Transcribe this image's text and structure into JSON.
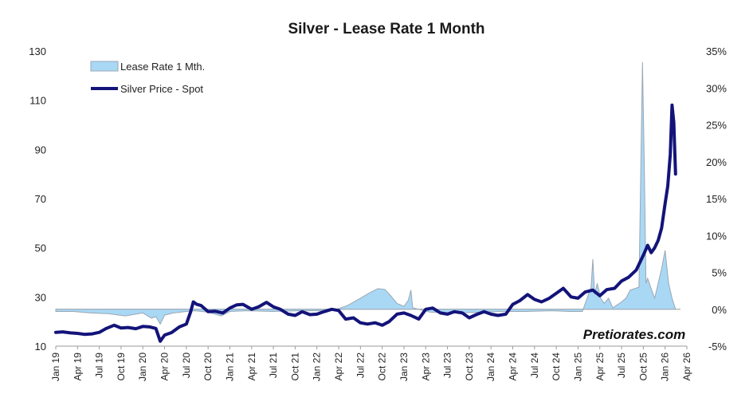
{
  "chart_data": {
    "type": "area+line",
    "title": "Silver - Lease Rate 1 Month",
    "watermark": "Pretiorates.com",
    "legend": [
      {
        "label": "Lease Rate 1 Mth.",
        "kind": "area",
        "color": "#a9d8f5"
      },
      {
        "label": "Silver Price - Spot",
        "kind": "line",
        "color": "#13137a"
      }
    ],
    "colors": {
      "area_fill": "#a9d8f5",
      "area_edge": "#9aa7b3",
      "line": "#13137a",
      "axis": "#9a9a9a"
    },
    "y_left": {
      "min": 10,
      "max": 130,
      "ticks": [
        10,
        30,
        50,
        70,
        90,
        110,
        130
      ],
      "tick_labels": [
        "10",
        "30",
        "50",
        "70",
        "90",
        "110",
        "130"
      ]
    },
    "y_right": {
      "min": -5,
      "max": 35,
      "ticks": [
        -5,
        0,
        5,
        10,
        15,
        20,
        25,
        30,
        35
      ],
      "tick_labels": [
        "-5%",
        "0%",
        "5%",
        "10%",
        "15%",
        "20%",
        "25%",
        "30%",
        "35%"
      ]
    },
    "x_axis": {
      "min": 2019.0,
      "max": 2026.25,
      "tick_labels": [
        "Jan 19",
        "Apr 19",
        "Jul 19",
        "Oct 19",
        "Jan 20",
        "Apr 20",
        "Jul 20",
        "Oct 20",
        "Jan 21",
        "Apr 21",
        "Jul 21",
        "Oct 21",
        "Jan 22",
        "Apr 22",
        "Jul 22",
        "Oct 22",
        "Jan 23",
        "Apr 23",
        "Jul 23",
        "Oct 23",
        "Jan 24",
        "Apr 24",
        "Jul 24",
        "Oct 24",
        "Jan 25",
        "Apr 25",
        "Jul 25",
        "Oct 25",
        "Jan 26",
        "Apr 26"
      ]
    },
    "silver_price": {
      "name": "Silver Price - Spot",
      "points": [
        [
          2019.0,
          15.6
        ],
        [
          2019.08,
          15.8
        ],
        [
          2019.17,
          15.4
        ],
        [
          2019.25,
          15.2
        ],
        [
          2019.33,
          14.8
        ],
        [
          2019.42,
          15.0
        ],
        [
          2019.5,
          15.6
        ],
        [
          2019.58,
          17.2
        ],
        [
          2019.67,
          18.5
        ],
        [
          2019.75,
          17.4
        ],
        [
          2019.83,
          17.6
        ],
        [
          2019.92,
          17.1
        ],
        [
          2020.0,
          18.0
        ],
        [
          2020.08,
          17.8
        ],
        [
          2020.15,
          17.2
        ],
        [
          2020.2,
          12.0
        ],
        [
          2020.25,
          14.5
        ],
        [
          2020.33,
          15.5
        ],
        [
          2020.42,
          17.8
        ],
        [
          2020.5,
          19.0
        ],
        [
          2020.55,
          24.0
        ],
        [
          2020.58,
          28.0
        ],
        [
          2020.62,
          27.0
        ],
        [
          2020.67,
          26.5
        ],
        [
          2020.75,
          24.0
        ],
        [
          2020.83,
          24.2
        ],
        [
          2020.92,
          23.5
        ],
        [
          2021.0,
          25.5
        ],
        [
          2021.08,
          26.8
        ],
        [
          2021.15,
          27.0
        ],
        [
          2021.25,
          25.0
        ],
        [
          2021.33,
          26.0
        ],
        [
          2021.42,
          27.8
        ],
        [
          2021.5,
          26.0
        ],
        [
          2021.58,
          25.0
        ],
        [
          2021.67,
          23.0
        ],
        [
          2021.75,
          22.5
        ],
        [
          2021.83,
          24.0
        ],
        [
          2021.92,
          22.8
        ],
        [
          2022.0,
          23.0
        ],
        [
          2022.08,
          24.0
        ],
        [
          2022.17,
          25.0
        ],
        [
          2022.25,
          24.5
        ],
        [
          2022.33,
          21.0
        ],
        [
          2022.42,
          21.5
        ],
        [
          2022.5,
          19.5
        ],
        [
          2022.58,
          19.0
        ],
        [
          2022.67,
          19.5
        ],
        [
          2022.75,
          18.5
        ],
        [
          2022.83,
          20.0
        ],
        [
          2022.92,
          23.0
        ],
        [
          2023.0,
          23.5
        ],
        [
          2023.08,
          22.5
        ],
        [
          2023.17,
          21.0
        ],
        [
          2023.25,
          25.0
        ],
        [
          2023.33,
          25.5
        ],
        [
          2023.42,
          23.5
        ],
        [
          2023.5,
          23.0
        ],
        [
          2023.58,
          24.0
        ],
        [
          2023.67,
          23.5
        ],
        [
          2023.75,
          21.5
        ],
        [
          2023.83,
          22.8
        ],
        [
          2023.92,
          24.0
        ],
        [
          2024.0,
          23.0
        ],
        [
          2024.08,
          22.5
        ],
        [
          2024.17,
          23.0
        ],
        [
          2024.25,
          27.0
        ],
        [
          2024.33,
          28.5
        ],
        [
          2024.42,
          31.0
        ],
        [
          2024.5,
          29.0
        ],
        [
          2024.58,
          28.0
        ],
        [
          2024.67,
          29.5
        ],
        [
          2024.75,
          31.5
        ],
        [
          2024.83,
          33.5
        ],
        [
          2024.92,
          30.0
        ],
        [
          2025.0,
          29.5
        ],
        [
          2025.08,
          32.0
        ],
        [
          2025.17,
          32.8
        ],
        [
          2025.25,
          30.5
        ],
        [
          2025.33,
          33.0
        ],
        [
          2025.42,
          33.5
        ],
        [
          2025.5,
          36.5
        ],
        [
          2025.58,
          38.0
        ],
        [
          2025.67,
          41.0
        ],
        [
          2025.75,
          47.0
        ],
        [
          2025.8,
          51.0
        ],
        [
          2025.84,
          48.0
        ],
        [
          2025.88,
          50.0
        ],
        [
          2025.92,
          53.0
        ],
        [
          2025.96,
          58.0
        ],
        [
          2026.0,
          68.0
        ],
        [
          2026.03,
          75.0
        ],
        [
          2026.06,
          88.0
        ],
        [
          2026.08,
          108.0
        ],
        [
          2026.1,
          101.0
        ],
        [
          2026.12,
          80.0
        ]
      ]
    },
    "lease_rate": {
      "name": "Lease Rate 1 Mth.",
      "points": [
        [
          2019.0,
          -0.3
        ],
        [
          2019.2,
          -0.3
        ],
        [
          2019.4,
          -0.5
        ],
        [
          2019.6,
          -0.6
        ],
        [
          2019.8,
          -0.9
        ],
        [
          2019.95,
          -0.6
        ],
        [
          2020.0,
          -0.5
        ],
        [
          2020.1,
          -1.2
        ],
        [
          2020.15,
          -1.0
        ],
        [
          2020.2,
          -2.0
        ],
        [
          2020.25,
          -0.8
        ],
        [
          2020.35,
          -0.5
        ],
        [
          2020.5,
          -0.3
        ],
        [
          2020.6,
          -0.2
        ],
        [
          2020.75,
          -0.4
        ],
        [
          2020.9,
          -0.9
        ],
        [
          2021.0,
          -0.3
        ],
        [
          2021.2,
          -0.2
        ],
        [
          2021.5,
          -0.3
        ],
        [
          2021.8,
          -0.2
        ],
        [
          2022.0,
          -0.2
        ],
        [
          2022.2,
          -0.1
        ],
        [
          2022.35,
          0.5
        ],
        [
          2022.5,
          1.5
        ],
        [
          2022.6,
          2.2
        ],
        [
          2022.7,
          2.8
        ],
        [
          2022.78,
          2.7
        ],
        [
          2022.85,
          1.8
        ],
        [
          2022.92,
          0.8
        ],
        [
          2023.0,
          0.4
        ],
        [
          2023.05,
          1.2
        ],
        [
          2023.08,
          2.6
        ],
        [
          2023.1,
          0.2
        ],
        [
          2023.3,
          -0.4
        ],
        [
          2023.6,
          -0.5
        ],
        [
          2023.9,
          -0.4
        ],
        [
          2024.1,
          -0.3
        ],
        [
          2024.4,
          -0.3
        ],
        [
          2024.7,
          -0.2
        ],
        [
          2024.9,
          -0.3
        ],
        [
          2025.05,
          -0.3
        ],
        [
          2025.15,
          3.0
        ],
        [
          2025.17,
          6.8
        ],
        [
          2025.19,
          2.0
        ],
        [
          2025.22,
          3.5
        ],
        [
          2025.26,
          1.5
        ],
        [
          2025.3,
          0.8
        ],
        [
          2025.35,
          1.5
        ],
        [
          2025.4,
          0.2
        ],
        [
          2025.45,
          0.6
        ],
        [
          2025.5,
          1.0
        ],
        [
          2025.55,
          1.5
        ],
        [
          2025.6,
          2.6
        ],
        [
          2025.65,
          2.8
        ],
        [
          2025.7,
          3.0
        ],
        [
          2025.74,
          33.5
        ],
        [
          2025.76,
          20.0
        ],
        [
          2025.78,
          3.5
        ],
        [
          2025.8,
          4.2
        ],
        [
          2025.84,
          2.8
        ],
        [
          2025.88,
          1.5
        ],
        [
          2025.92,
          3.5
        ],
        [
          2025.96,
          5.5
        ],
        [
          2026.0,
          8.0
        ],
        [
          2026.04,
          3.5
        ],
        [
          2026.08,
          1.5
        ],
        [
          2026.12,
          0.0
        ]
      ]
    }
  }
}
